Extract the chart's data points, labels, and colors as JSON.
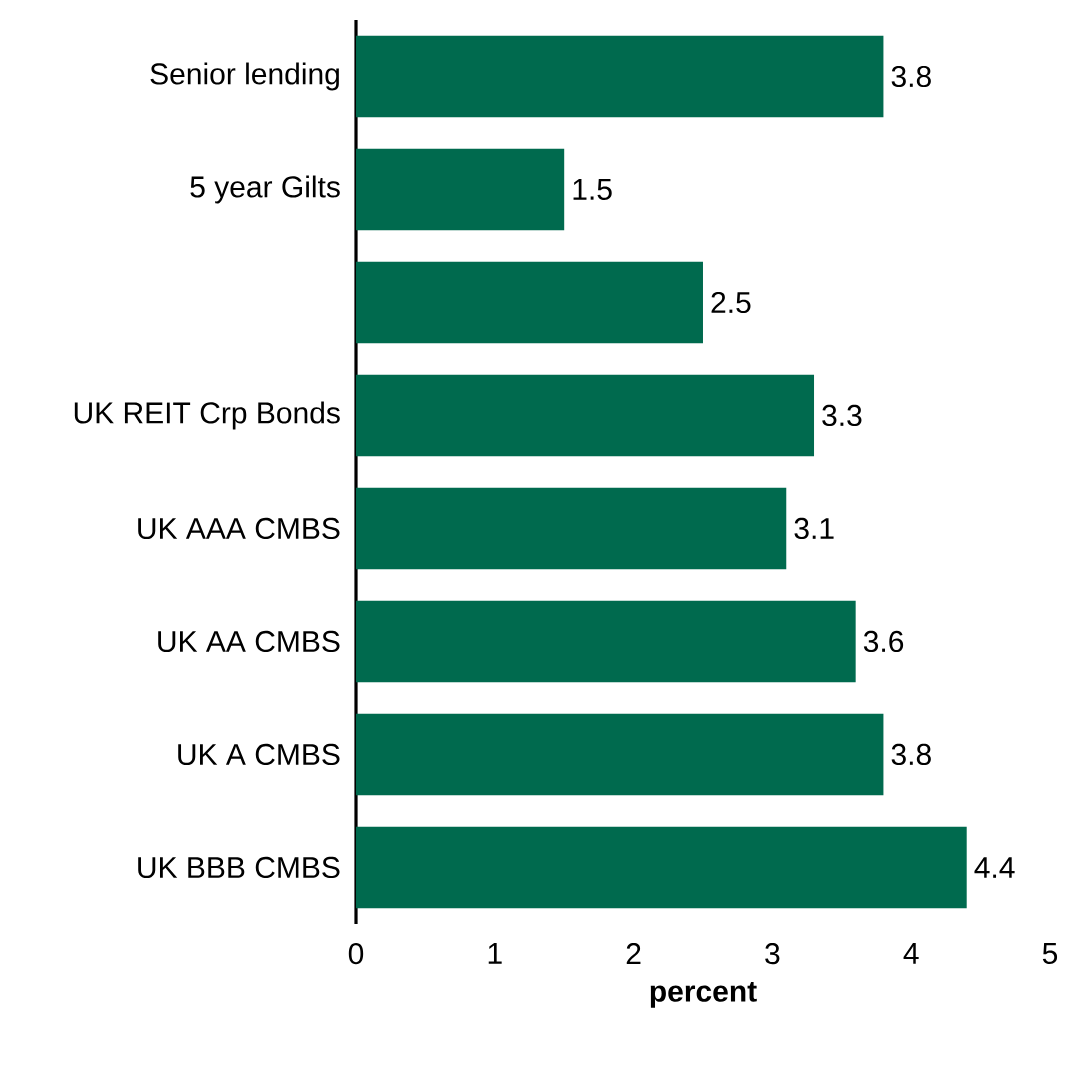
{
  "chart_data": {
    "type": "bar",
    "orientation": "horizontal",
    "xlabel": "percent",
    "categories": [
      "Senior lending",
      "5 year Gilts",
      null,
      "UK REIT Crp Bonds",
      "UK AAA CMBS",
      "UK AA CMBS",
      "UK A CMBS",
      "UK BBB CMBS"
    ],
    "values": [
      3.8,
      1.5,
      2.5,
      3.3,
      3.1,
      3.6,
      3.8,
      4.4
    ],
    "color": "#006a4e",
    "xlim": [
      0,
      5
    ],
    "xticks": [
      0,
      1,
      2,
      3,
      4,
      5
    ],
    "data_labels": true
  }
}
